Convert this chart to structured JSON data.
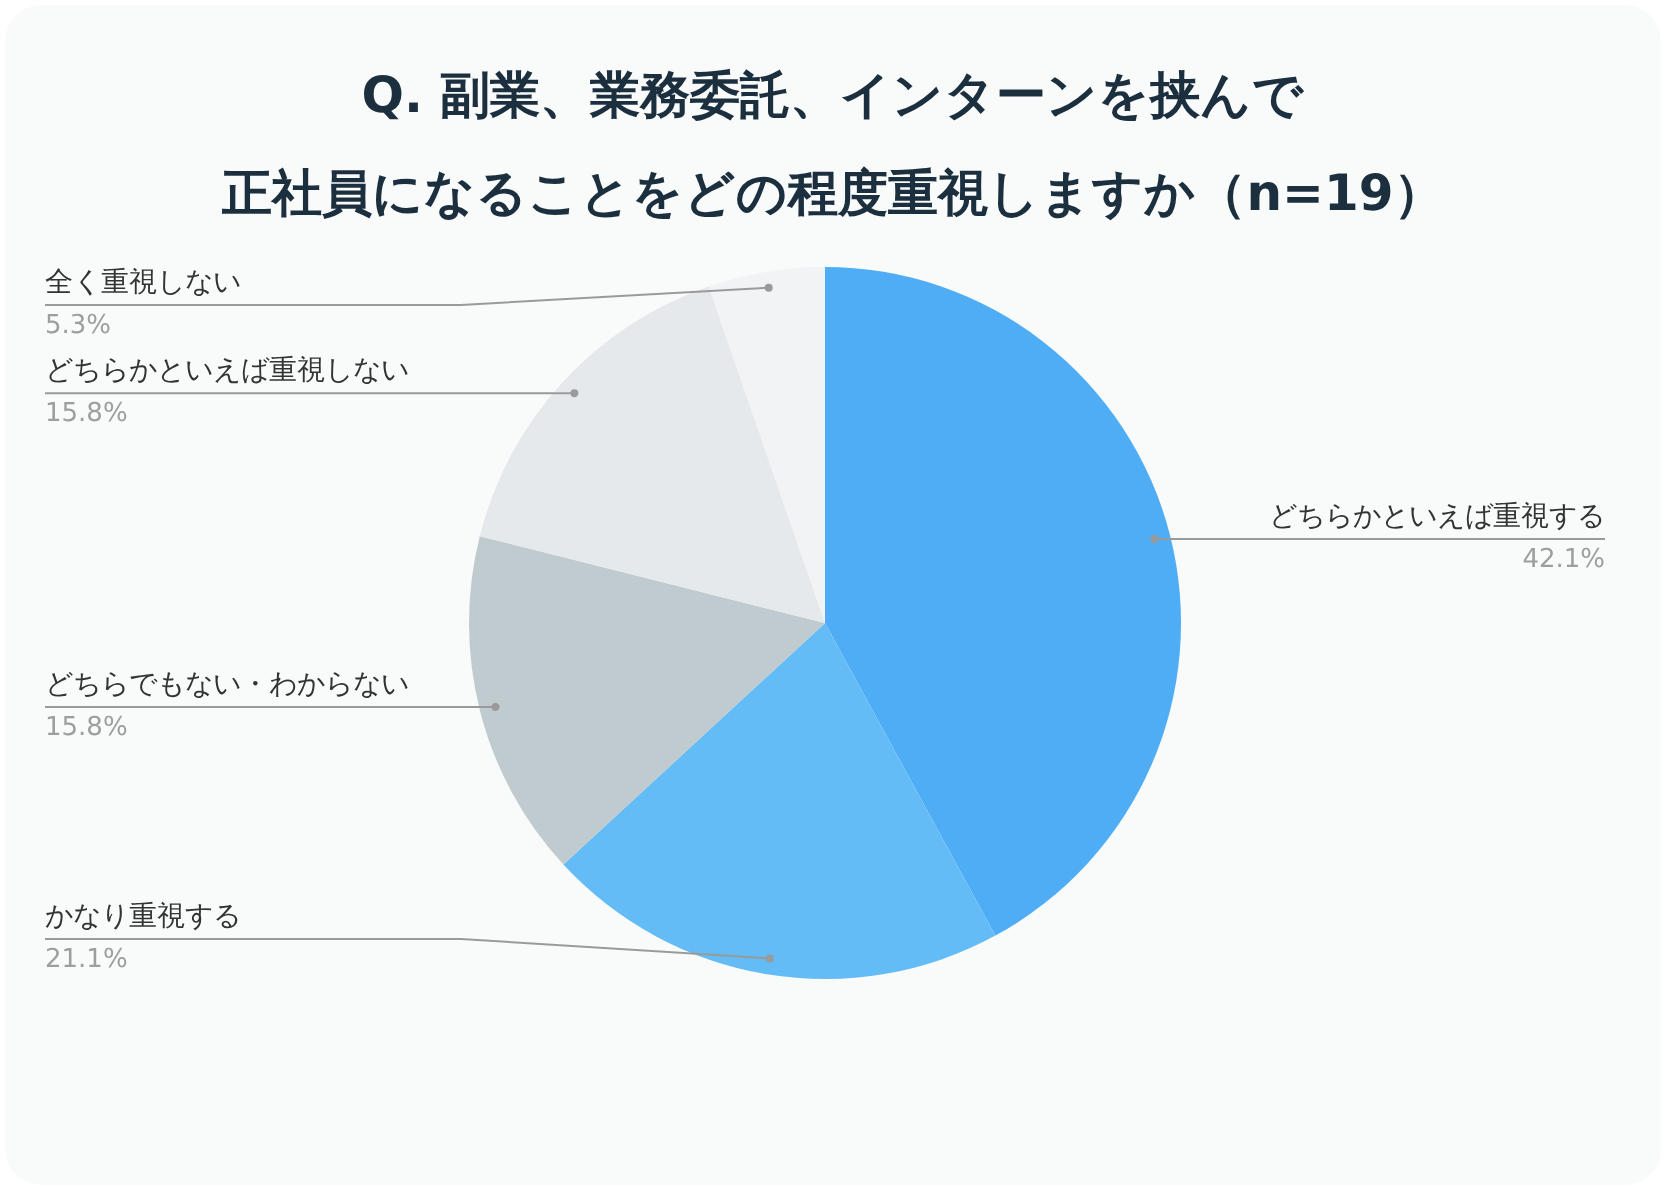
{
  "chart_data": {
    "type": "pie",
    "title": "Q. 副業、業務委託、インターンを挟んで正社員になることをどの程度重視しますか（n=19）",
    "categories": [
      "どちらかといえば重視する",
      "かなり重視する",
      "どちらでもない・わからない",
      "どちらかといえば重視しない",
      "全く重視しない"
    ],
    "values": [
      42.1,
      21.1,
      15.8,
      15.8,
      5.3
    ],
    "value_labels": [
      "42.1%",
      "21.1%",
      "15.8%",
      "15.8%",
      "5.3%"
    ],
    "colors": [
      "#4fadf5",
      "#63bcf6",
      "#c0cbd0",
      "#e5e9ec",
      "#f1f3f4"
    ]
  }
}
